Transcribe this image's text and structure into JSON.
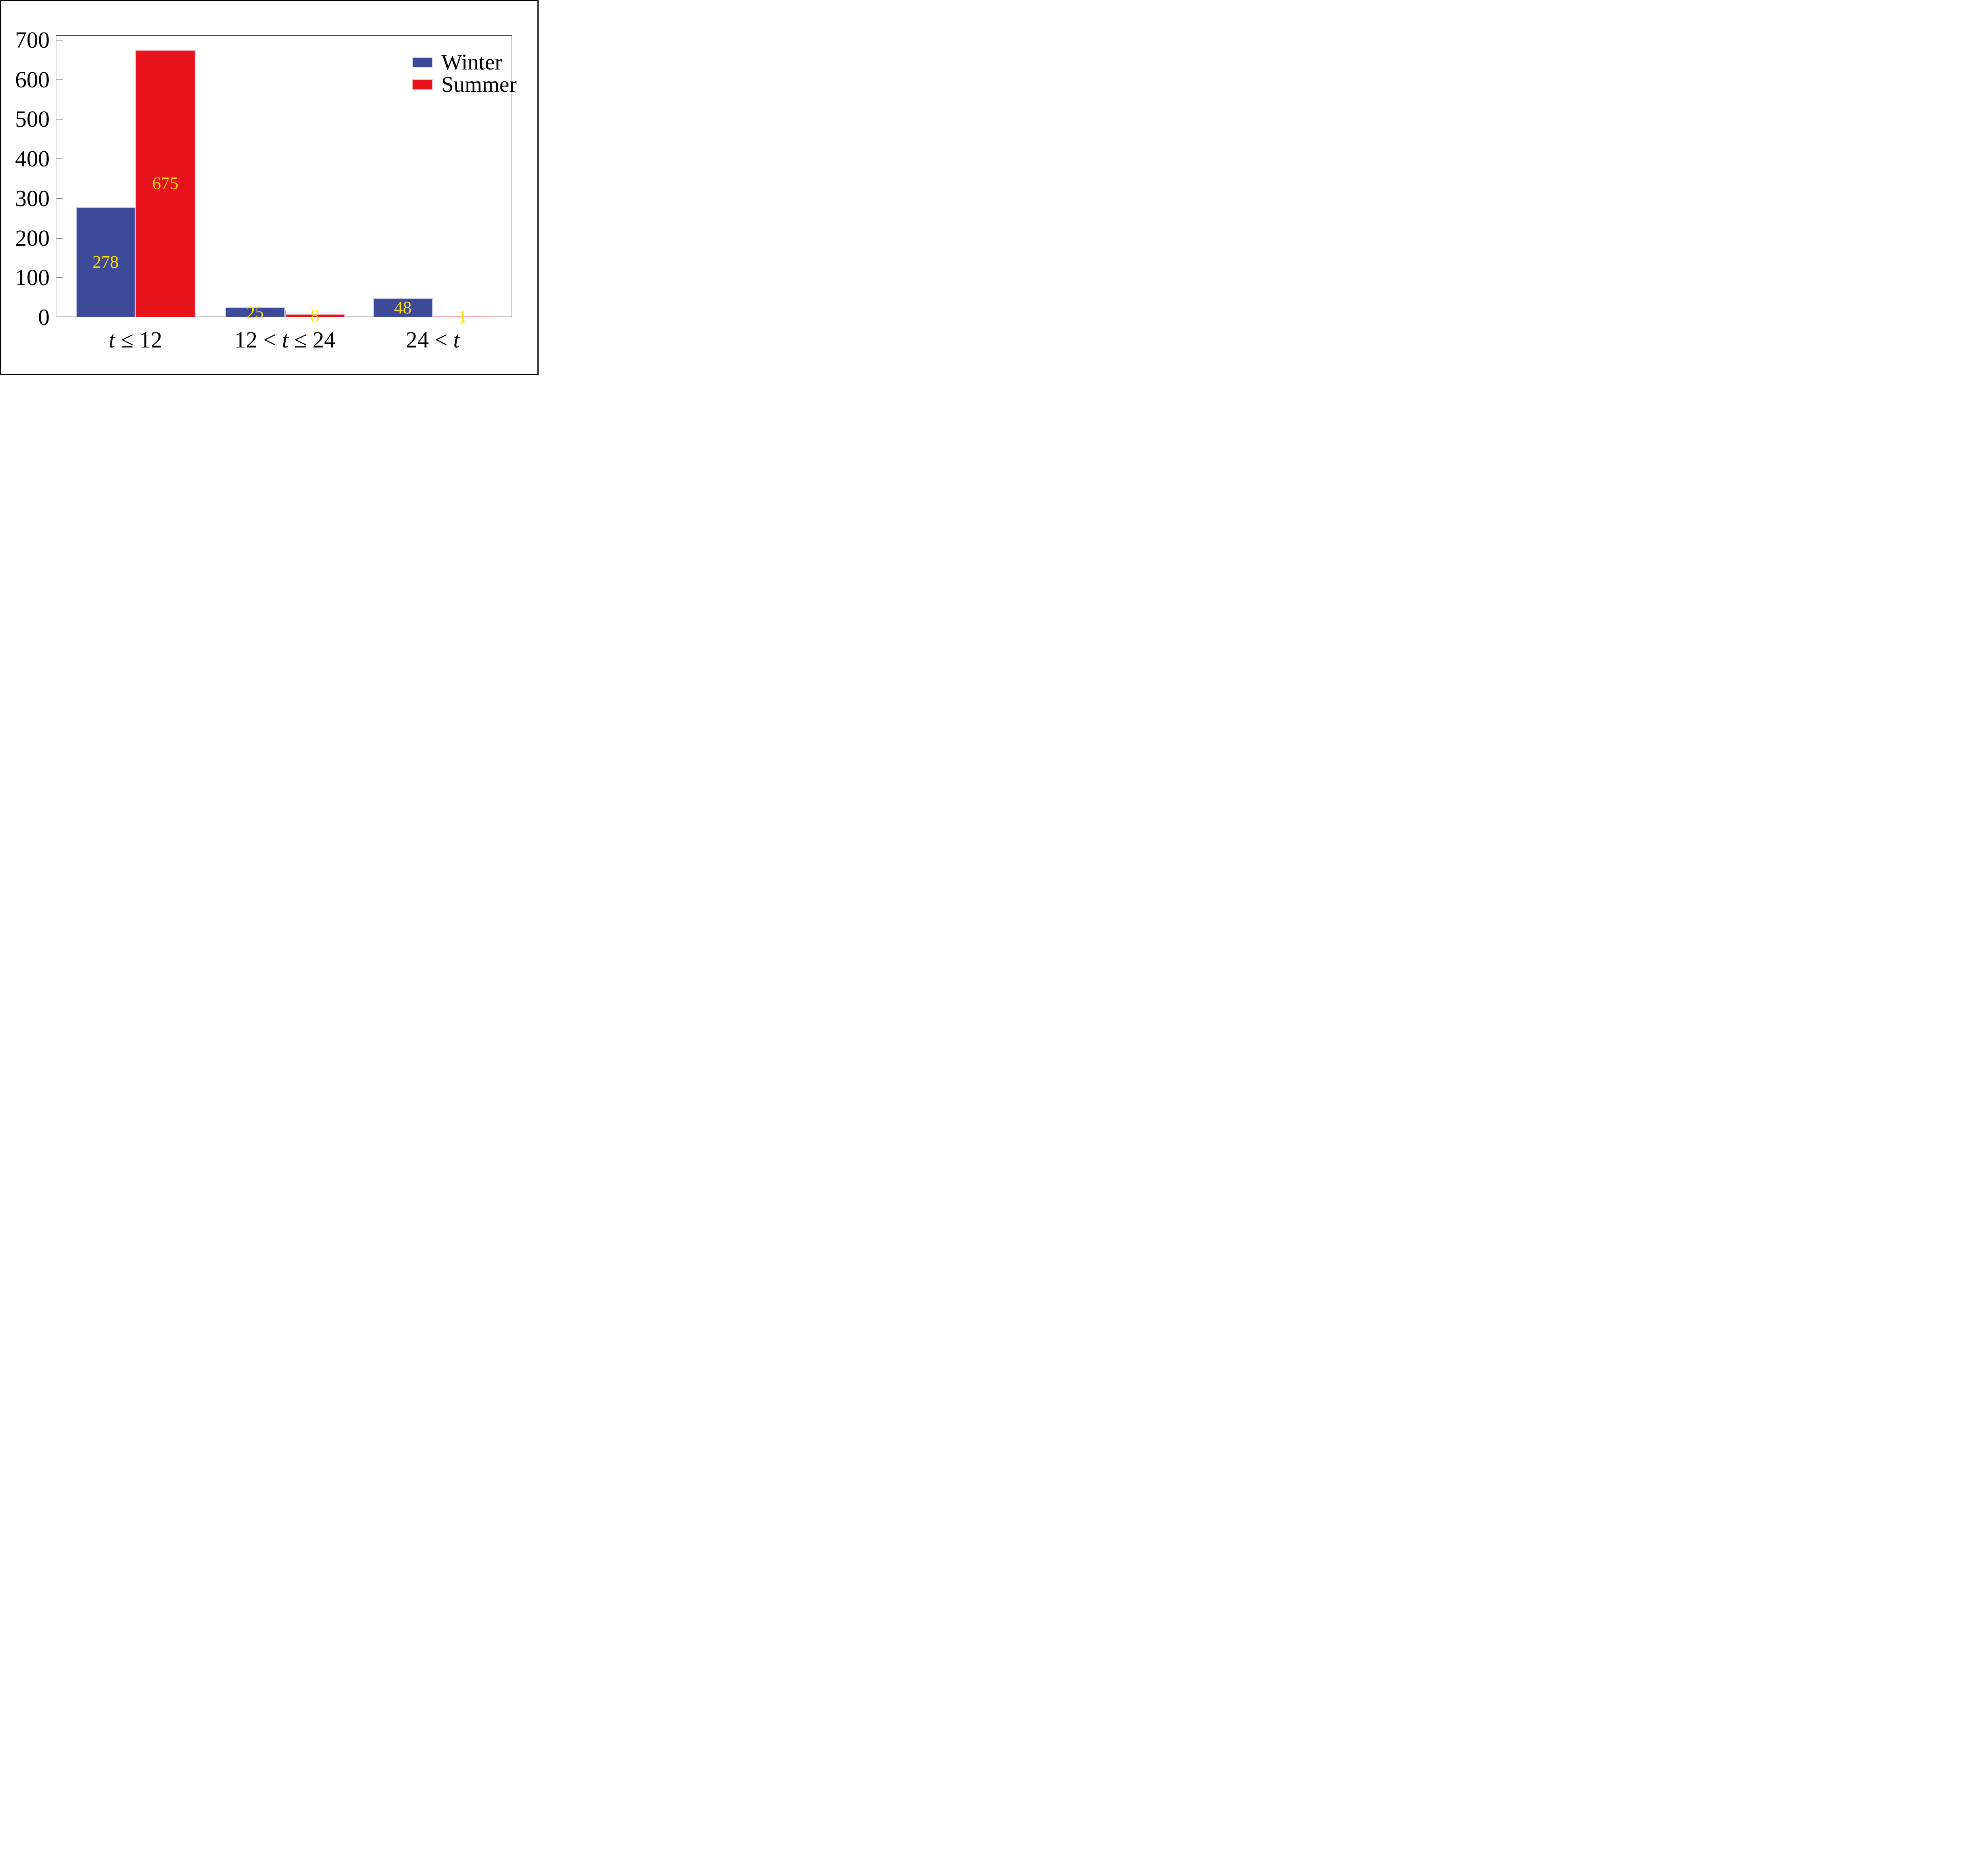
{
  "chart_data": {
    "type": "bar",
    "title": "",
    "categories": [
      "t ≤ 12",
      "12 < t ≤ 24",
      "24 < t"
    ],
    "series": [
      {
        "name": "Winter",
        "color": "#3C4A99",
        "edge_color": "#C9CFE8",
        "values": [
          278,
          25,
          48
        ]
      },
      {
        "name": "Summer",
        "color": "#E8121C",
        "edge_color": "#F2A8B0",
        "values": [
          675,
          8,
          1
        ]
      }
    ],
    "ylim": [
      0,
      700
    ],
    "yticks": [
      0,
      100,
      200,
      300,
      400,
      500,
      600,
      700
    ],
    "xlabel": "",
    "ylabel": "",
    "grid": false,
    "legend_position": "upper right",
    "value_label_color": "#FFDF00",
    "axis_color": "#8C8C8C",
    "frame_border_color": "#000000",
    "background_color": "#FFFFFF"
  }
}
